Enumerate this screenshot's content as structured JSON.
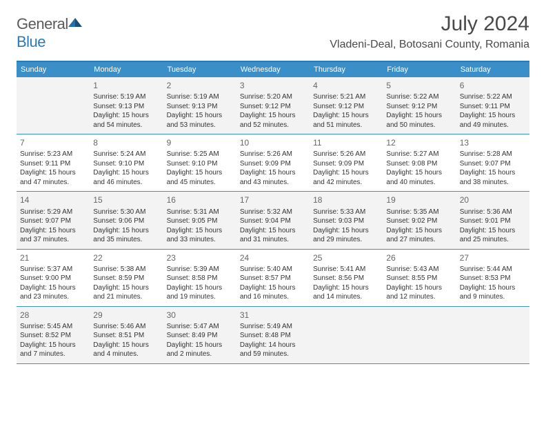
{
  "logo": {
    "text1": "General",
    "text2": "Blue",
    "icon_color": "#2a6ea8"
  },
  "header": {
    "month_title": "July 2024",
    "location": "Vladeni-Deal, Botosani County, Romania"
  },
  "colors": {
    "brand_blue": "#3b8fc9",
    "rule_blue": "#2a7ab8",
    "alt_row": "#f3f3f3",
    "text_gray": "#4a4a4a"
  },
  "day_headers": [
    "Sunday",
    "Monday",
    "Tuesday",
    "Wednesday",
    "Thursday",
    "Friday",
    "Saturday"
  ],
  "weeks": [
    [
      {
        "num": "",
        "lines": []
      },
      {
        "num": "1",
        "lines": [
          "Sunrise: 5:19 AM",
          "Sunset: 9:13 PM",
          "Daylight: 15 hours and 54 minutes."
        ]
      },
      {
        "num": "2",
        "lines": [
          "Sunrise: 5:19 AM",
          "Sunset: 9:13 PM",
          "Daylight: 15 hours and 53 minutes."
        ]
      },
      {
        "num": "3",
        "lines": [
          "Sunrise: 5:20 AM",
          "Sunset: 9:12 PM",
          "Daylight: 15 hours and 52 minutes."
        ]
      },
      {
        "num": "4",
        "lines": [
          "Sunrise: 5:21 AM",
          "Sunset: 9:12 PM",
          "Daylight: 15 hours and 51 minutes."
        ]
      },
      {
        "num": "5",
        "lines": [
          "Sunrise: 5:22 AM",
          "Sunset: 9:12 PM",
          "Daylight: 15 hours and 50 minutes."
        ]
      },
      {
        "num": "6",
        "lines": [
          "Sunrise: 5:22 AM",
          "Sunset: 9:11 PM",
          "Daylight: 15 hours and 49 minutes."
        ]
      }
    ],
    [
      {
        "num": "7",
        "lines": [
          "Sunrise: 5:23 AM",
          "Sunset: 9:11 PM",
          "Daylight: 15 hours and 47 minutes."
        ]
      },
      {
        "num": "8",
        "lines": [
          "Sunrise: 5:24 AM",
          "Sunset: 9:10 PM",
          "Daylight: 15 hours and 46 minutes."
        ]
      },
      {
        "num": "9",
        "lines": [
          "Sunrise: 5:25 AM",
          "Sunset: 9:10 PM",
          "Daylight: 15 hours and 45 minutes."
        ]
      },
      {
        "num": "10",
        "lines": [
          "Sunrise: 5:26 AM",
          "Sunset: 9:09 PM",
          "Daylight: 15 hours and 43 minutes."
        ]
      },
      {
        "num": "11",
        "lines": [
          "Sunrise: 5:26 AM",
          "Sunset: 9:09 PM",
          "Daylight: 15 hours and 42 minutes."
        ]
      },
      {
        "num": "12",
        "lines": [
          "Sunrise: 5:27 AM",
          "Sunset: 9:08 PM",
          "Daylight: 15 hours and 40 minutes."
        ]
      },
      {
        "num": "13",
        "lines": [
          "Sunrise: 5:28 AM",
          "Sunset: 9:07 PM",
          "Daylight: 15 hours and 38 minutes."
        ]
      }
    ],
    [
      {
        "num": "14",
        "lines": [
          "Sunrise: 5:29 AM",
          "Sunset: 9:07 PM",
          "Daylight: 15 hours and 37 minutes."
        ]
      },
      {
        "num": "15",
        "lines": [
          "Sunrise: 5:30 AM",
          "Sunset: 9:06 PM",
          "Daylight: 15 hours and 35 minutes."
        ]
      },
      {
        "num": "16",
        "lines": [
          "Sunrise: 5:31 AM",
          "Sunset: 9:05 PM",
          "Daylight: 15 hours and 33 minutes."
        ]
      },
      {
        "num": "17",
        "lines": [
          "Sunrise: 5:32 AM",
          "Sunset: 9:04 PM",
          "Daylight: 15 hours and 31 minutes."
        ]
      },
      {
        "num": "18",
        "lines": [
          "Sunrise: 5:33 AM",
          "Sunset: 9:03 PM",
          "Daylight: 15 hours and 29 minutes."
        ]
      },
      {
        "num": "19",
        "lines": [
          "Sunrise: 5:35 AM",
          "Sunset: 9:02 PM",
          "Daylight: 15 hours and 27 minutes."
        ]
      },
      {
        "num": "20",
        "lines": [
          "Sunrise: 5:36 AM",
          "Sunset: 9:01 PM",
          "Daylight: 15 hours and 25 minutes."
        ]
      }
    ],
    [
      {
        "num": "21",
        "lines": [
          "Sunrise: 5:37 AM",
          "Sunset: 9:00 PM",
          "Daylight: 15 hours and 23 minutes."
        ]
      },
      {
        "num": "22",
        "lines": [
          "Sunrise: 5:38 AM",
          "Sunset: 8:59 PM",
          "Daylight: 15 hours and 21 minutes."
        ]
      },
      {
        "num": "23",
        "lines": [
          "Sunrise: 5:39 AM",
          "Sunset: 8:58 PM",
          "Daylight: 15 hours and 19 minutes."
        ]
      },
      {
        "num": "24",
        "lines": [
          "Sunrise: 5:40 AM",
          "Sunset: 8:57 PM",
          "Daylight: 15 hours and 16 minutes."
        ]
      },
      {
        "num": "25",
        "lines": [
          "Sunrise: 5:41 AM",
          "Sunset: 8:56 PM",
          "Daylight: 15 hours and 14 minutes."
        ]
      },
      {
        "num": "26",
        "lines": [
          "Sunrise: 5:43 AM",
          "Sunset: 8:55 PM",
          "Daylight: 15 hours and 12 minutes."
        ]
      },
      {
        "num": "27",
        "lines": [
          "Sunrise: 5:44 AM",
          "Sunset: 8:53 PM",
          "Daylight: 15 hours and 9 minutes."
        ]
      }
    ],
    [
      {
        "num": "28",
        "lines": [
          "Sunrise: 5:45 AM",
          "Sunset: 8:52 PM",
          "Daylight: 15 hours and 7 minutes."
        ]
      },
      {
        "num": "29",
        "lines": [
          "Sunrise: 5:46 AM",
          "Sunset: 8:51 PM",
          "Daylight: 15 hours and 4 minutes."
        ]
      },
      {
        "num": "30",
        "lines": [
          "Sunrise: 5:47 AM",
          "Sunset: 8:49 PM",
          "Daylight: 15 hours and 2 minutes."
        ]
      },
      {
        "num": "31",
        "lines": [
          "Sunrise: 5:49 AM",
          "Sunset: 8:48 PM",
          "Daylight: 14 hours and 59 minutes."
        ]
      },
      {
        "num": "",
        "lines": []
      },
      {
        "num": "",
        "lines": []
      },
      {
        "num": "",
        "lines": []
      }
    ]
  ]
}
